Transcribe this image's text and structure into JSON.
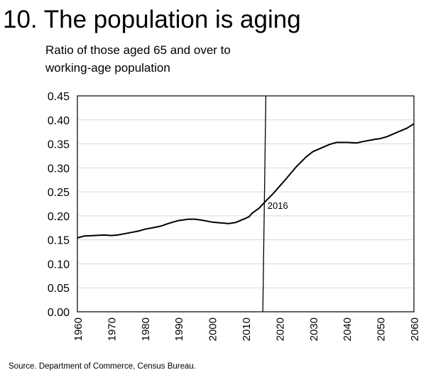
{
  "chart_data": {
    "type": "line",
    "title": "10. The population is aging",
    "subtitle_lines": [
      "Ratio of those aged 65 and over to",
      "working-age population"
    ],
    "source": "Source. Department of Commerce, Census Bureau.",
    "xlabel": "",
    "ylabel": "",
    "xlim": [
      1960,
      2060
    ],
    "ylim": [
      0,
      0.45
    ],
    "x_ticks": [
      "1960",
      "1970",
      "1980",
      "1990",
      "2000",
      "2010",
      "2020",
      "2030",
      "2040",
      "2050",
      "2060"
    ],
    "y_ticks": [
      "0.00",
      "0.05",
      "0.10",
      "0.15",
      "0.20",
      "0.25",
      "0.30",
      "0.35",
      "0.40",
      "0.45"
    ],
    "grid": "horizontal",
    "series": [
      {
        "name": "Ratio 65+ to working-age",
        "color": "#000000",
        "x": [
          1960,
          1962,
          1965,
          1968,
          1970,
          1972,
          1975,
          1978,
          1980,
          1983,
          1985,
          1987,
          1990,
          1993,
          1995,
          1997,
          2000,
          2003,
          2005,
          2007,
          2010,
          2011,
          2012,
          2014,
          2016,
          2018,
          2020,
          2022,
          2025,
          2028,
          2030,
          2033,
          2035,
          2037,
          2040,
          2043,
          2045,
          2048,
          2050,
          2052,
          2055,
          2058,
          2060
        ],
        "y": [
          0.154,
          0.158,
          0.159,
          0.16,
          0.159,
          0.16,
          0.164,
          0.168,
          0.172,
          0.176,
          0.179,
          0.184,
          0.19,
          0.193,
          0.193,
          0.191,
          0.187,
          0.185,
          0.184,
          0.186,
          0.195,
          0.198,
          0.206,
          0.216,
          0.231,
          0.245,
          0.261,
          0.277,
          0.302,
          0.323,
          0.334,
          0.343,
          0.349,
          0.353,
          0.353,
          0.352,
          0.355,
          0.359,
          0.361,
          0.365,
          0.374,
          0.383,
          0.392
        ]
      }
    ],
    "marker": {
      "label": "2016",
      "x": [
        2015.1,
        2016
      ],
      "y": [
        0,
        0.45
      ],
      "label_x": 2016.5,
      "label_y": 0.215
    }
  }
}
